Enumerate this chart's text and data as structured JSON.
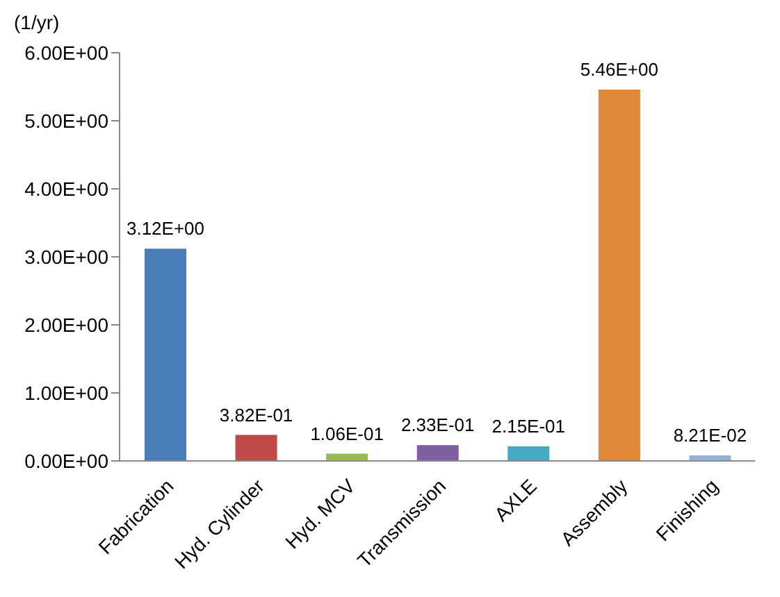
{
  "chart_data": {
    "type": "bar",
    "ylabel": "(1/yr)",
    "categories": [
      "Fabrication",
      "Hyd. Cylinder",
      "Hyd. MCV",
      "Transmission",
      "AXLE",
      "Assembly",
      "Finishing"
    ],
    "values": [
      3.12,
      0.382,
      0.106,
      0.233,
      0.215,
      5.46,
      0.0821
    ],
    "colors": [
      "#4a7ebb",
      "#be4b48",
      "#98b954",
      "#7d60a0",
      "#46aac5",
      "#e0883a",
      "#95b3d7"
    ],
    "value_labels": [
      "3.12E+00",
      "3.82E-01",
      "1.06E-01",
      "2.33E-01",
      "2.15E-01",
      "5.46E+00",
      "8.21E-02"
    ],
    "ylim": [
      0,
      6
    ],
    "yticks": [
      {
        "value": 0,
        "label": "0.00E+00"
      },
      {
        "value": 1,
        "label": "1.00E+00"
      },
      {
        "value": 2,
        "label": "2.00E+00"
      },
      {
        "value": 3,
        "label": "3.00E+00"
      },
      {
        "value": 4,
        "label": "4.00E+00"
      },
      {
        "value": 5,
        "label": "5.00E+00"
      },
      {
        "value": 6,
        "label": "6.00E+00"
      }
    ],
    "grid": false,
    "legend": false
  }
}
